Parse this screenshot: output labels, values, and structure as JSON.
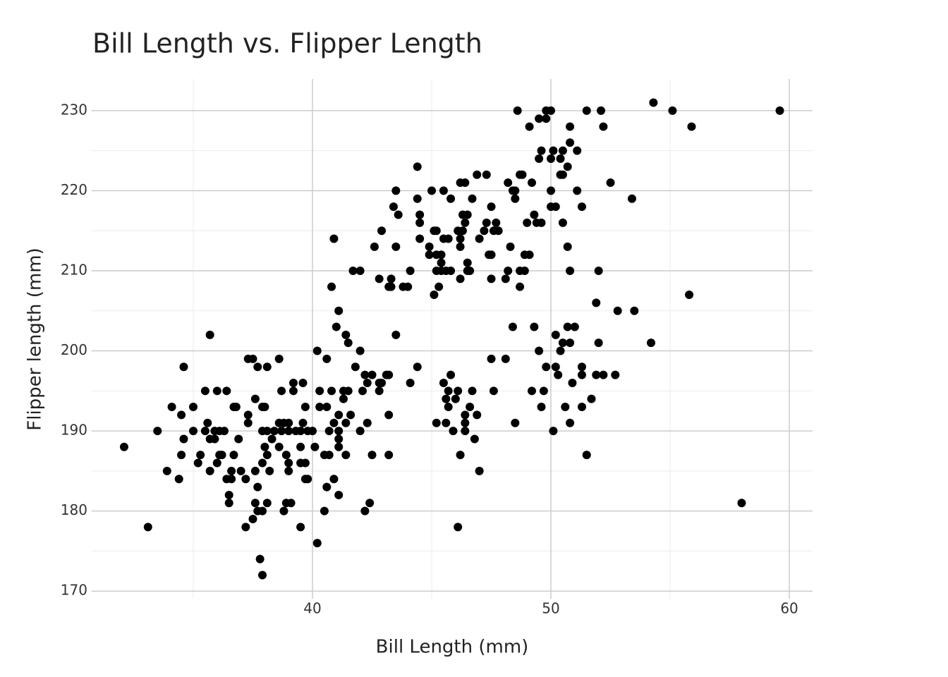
{
  "chart_data": {
    "type": "scatter",
    "title": "Bill Length vs. Flipper Length",
    "x_label": "Bill Length (mm)",
    "y_label": "Flipper length (mm)",
    "xlim": [
      30.725,
      60.975
    ],
    "ylim": [
      169.05,
      233.95
    ],
    "xticks": [
      40,
      50,
      60
    ],
    "yticks": [
      170,
      180,
      190,
      200,
      210,
      220,
      230
    ],
    "grid": true,
    "minor_grid": true,
    "color": "#000000",
    "x": [
      54.3,
      48.6,
      49.8,
      50.0,
      51.5,
      52.1,
      55.1,
      59.6,
      49.5,
      49.8,
      49.1,
      50.8,
      52.2,
      55.9,
      50.8,
      49.6,
      50.1,
      50.5,
      51.1,
      49.5,
      50.0,
      50.4,
      44.4,
      50.7,
      46.9,
      47.3,
      48.7,
      48.8,
      50.4,
      50.5,
      46.2,
      46.4,
      48.2,
      49.2,
      52.5,
      43.5,
      45.0,
      45.5,
      48.4,
      48.5,
      50.0,
      51.1,
      44.4,
      45.8,
      46.7,
      48.5,
      53.4,
      43.4,
      47.5,
      50.0,
      50.2,
      51.3,
      43.6,
      44.5,
      46.3,
      46.5,
      49.3,
      44.5,
      46.4,
      47.3,
      47.7,
      49.0,
      49.4,
      49.6,
      50.5,
      42.9,
      45.1,
      45.2,
      46.1,
      46.3,
      47.2,
      47.6,
      47.8,
      40.9,
      44.5,
      45.5,
      45.7,
      46.2,
      47.0,
      42.6,
      43.5,
      44.9,
      46.2,
      48.3,
      50.7,
      44.9,
      45.2,
      45.4,
      47.4,
      47.5,
      48.9,
      49.1,
      45.4,
      46.5,
      41.7,
      42.0,
      44.1,
      45.2,
      45.4,
      45.6,
      45.8,
      46.5,
      46.6,
      48.2,
      48.7,
      48.9,
      50.8,
      52.0,
      42.8,
      43.3,
      46.2,
      47.5,
      48.1,
      40.8,
      43.2,
      43.3,
      43.8,
      44.0,
      45.3,
      48.7,
      45.1,
      55.8,
      51.9,
      41.1,
      52.8,
      53.5,
      41.0,
      48.4,
      49.3,
      50.7,
      51.0,
      35.7,
      41.4,
      43.5,
      50.2,
      41.5,
      50.5,
      50.8,
      52.0,
      54.2,
      40.2,
      42.0,
      49.5,
      50.4,
      37.3,
      37.5,
      38.6,
      40.6,
      47.5,
      48.1,
      34.6,
      37.7,
      38.1,
      41.8,
      44.4,
      49.8,
      50.2,
      51.3,
      42.2,
      42.5,
      43.1,
      43.2,
      45.8,
      50.3,
      51.3,
      51.9,
      52.2,
      52.7,
      39.2,
      39.6,
      42.3,
      42.8,
      42.9,
      44.1,
      45.5,
      50.9,
      35.5,
      36.0,
      36.4,
      38.7,
      39.2,
      40.3,
      40.8,
      41.3,
      41.5,
      42.1,
      42.8,
      45.7,
      46.1,
      46.7,
      47.6,
      49.2,
      49.7,
      37.6,
      41.3,
      45.6,
      46.0,
      51.7,
      34.1,
      35.0,
      36.7,
      36.8,
      37.9,
      38.0,
      39.7,
      40.3,
      40.6,
      45.7,
      46.6,
      49.6,
      50.6,
      51.3,
      34.5,
      37.3,
      41.1,
      41.6,
      43.2,
      46.4,
      46.9,
      35.6,
      37.3,
      38.6,
      38.8,
      39.0,
      39.6,
      40.9,
      41.4,
      42.3,
      45.2,
      45.6,
      46.4,
      48.5,
      50.8,
      33.5,
      35.0,
      35.5,
      35.9,
      36.1,
      36.3,
      37.9,
      38.1,
      38.4,
      38.7,
      39.0,
      39.3,
      39.5,
      39.8,
      40.0,
      40.7,
      41.1,
      42.0,
      45.9,
      46.4,
      50.1,
      34.6,
      35.7,
      35.9,
      36.9,
      38.3,
      41.1,
      46.8,
      32.1,
      38.0,
      38.6,
      39.5,
      40.1,
      41.1,
      34.5,
      35.3,
      36.1,
      36.2,
      36.7,
      38.1,
      38.9,
      40.5,
      40.7,
      41.4,
      42.5,
      43.2,
      46.2,
      51.5,
      35.2,
      36.0,
      37.9,
      39.0,
      39.5,
      39.7,
      33.9,
      35.7,
      36.6,
      37.0,
      37.6,
      38.2,
      39.0,
      47.0,
      34.4,
      36.4,
      36.6,
      37.2,
      39.7,
      39.8,
      40.9,
      37.7,
      40.6,
      36.5,
      41.1,
      36.5,
      37.6,
      38.1,
      38.9,
      39.1,
      42.4,
      58.0,
      37.7,
      37.9,
      38.8,
      40.5,
      42.2,
      37.5,
      33.1,
      37.2,
      39.5,
      46.1,
      40.2,
      37.8,
      37.9
    ],
    "y": [
      231,
      230,
      230,
      230,
      230,
      230,
      230,
      230,
      229,
      229,
      228,
      228,
      228,
      228,
      226,
      225,
      225,
      225,
      225,
      224,
      224,
      224,
      223,
      223,
      222,
      222,
      222,
      222,
      222,
      222,
      221,
      221,
      221,
      221,
      221,
      220,
      220,
      220,
      220,
      220,
      220,
      220,
      219,
      219,
      219,
      219,
      219,
      218,
      218,
      218,
      218,
      218,
      217,
      217,
      217,
      217,
      217,
      216,
      216,
      216,
      216,
      216,
      216,
      216,
      216,
      215,
      215,
      215,
      215,
      215,
      215,
      215,
      215,
      214,
      214,
      214,
      214,
      214,
      214,
      213,
      213,
      213,
      213,
      213,
      213,
      212,
      212,
      212,
      212,
      212,
      212,
      212,
      211,
      211,
      210,
      210,
      210,
      210,
      210,
      210,
      210,
      210,
      210,
      210,
      210,
      210,
      210,
      210,
      209,
      209,
      209,
      209,
      209,
      208,
      208,
      208,
      208,
      208,
      208,
      208,
      207,
      207,
      206,
      205,
      205,
      205,
      203,
      203,
      203,
      203,
      203,
      202,
      202,
      202,
      202,
      201,
      201,
      201,
      201,
      201,
      200,
      200,
      200,
      200,
      199,
      199,
      199,
      199,
      199,
      199,
      198,
      198,
      198,
      198,
      198,
      198,
      198,
      198,
      197,
      197,
      197,
      197,
      197,
      197,
      197,
      197,
      197,
      197,
      196,
      196,
      196,
      196,
      196,
      196,
      196,
      196,
      195,
      195,
      195,
      195,
      195,
      195,
      195,
      195,
      195,
      195,
      195,
      195,
      195,
      195,
      195,
      195,
      195,
      194,
      194,
      194,
      194,
      194,
      193,
      193,
      193,
      193,
      193,
      193,
      193,
      193,
      193,
      193,
      193,
      193,
      193,
      193,
      192,
      192,
      192,
      192,
      192,
      192,
      192,
      191,
      191,
      191,
      191,
      191,
      191,
      191,
      191,
      191,
      191,
      191,
      191,
      191,
      191,
      190,
      190,
      190,
      190,
      190,
      190,
      190,
      190,
      190,
      190,
      190,
      190,
      190,
      190,
      190,
      190,
      190,
      190,
      190,
      190,
      190,
      189,
      189,
      189,
      189,
      189,
      189,
      189,
      188,
      188,
      188,
      188,
      188,
      188,
      187,
      187,
      187,
      187,
      187,
      187,
      187,
      187,
      187,
      187,
      187,
      187,
      187,
      187,
      186,
      186,
      186,
      186,
      186,
      186,
      185,
      185,
      185,
      185,
      185,
      185,
      185,
      185,
      184,
      184,
      184,
      184,
      184,
      184,
      184,
      183,
      183,
      182,
      182,
      181,
      181,
      181,
      181,
      181,
      181,
      181,
      180,
      180,
      180,
      180,
      180,
      179,
      178,
      178,
      178,
      178,
      176,
      174,
      172
    ]
  }
}
